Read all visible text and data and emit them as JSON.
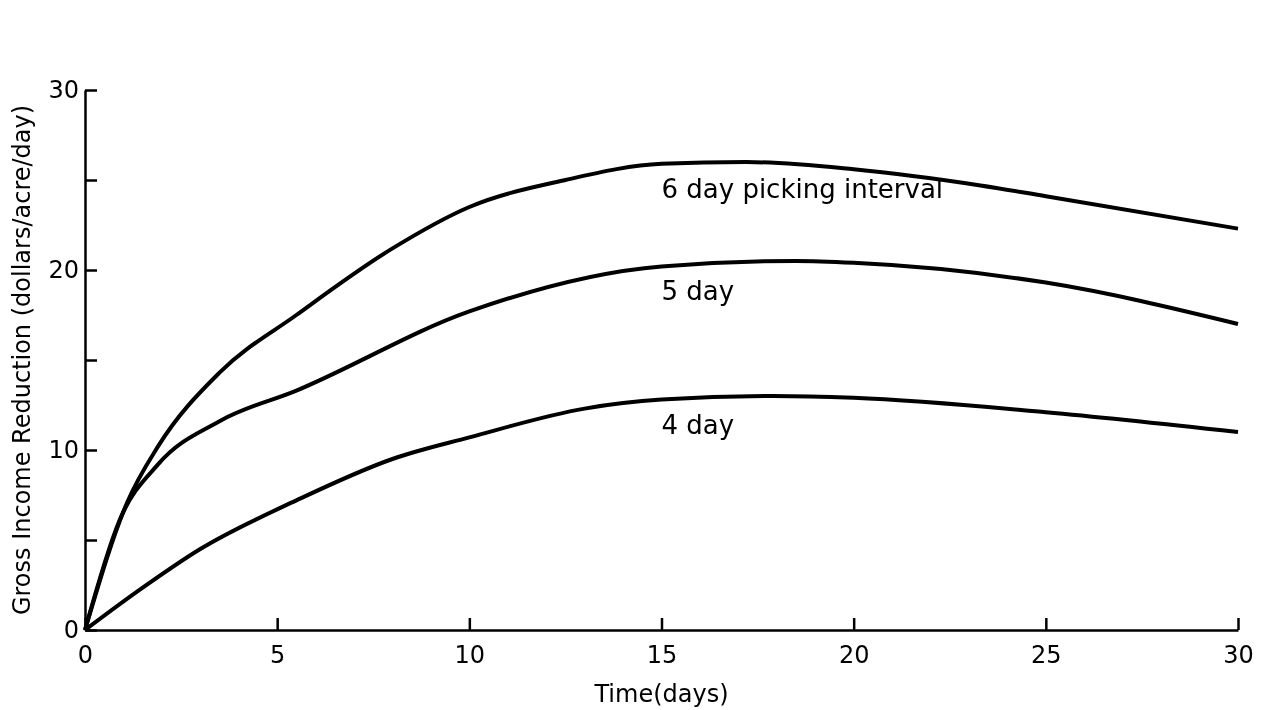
{
  "chart_data": {
    "type": "line",
    "xlabel": "Time(days)",
    "ylabel": "Gross Income Reduction (dollars/acre/day)",
    "xlim": [
      0,
      30
    ],
    "ylim": [
      0,
      30
    ],
    "xticks": [
      0,
      5,
      10,
      15,
      20,
      25,
      30
    ],
    "yticks": [
      0,
      {
        "value": 5,
        "label": null
      },
      10,
      {
        "value": 15,
        "label": null
      },
      20,
      {
        "value": 25,
        "label": null
      },
      30
    ],
    "grid": false,
    "legend": false,
    "marker": "none",
    "line_style": "solid",
    "series": [
      {
        "name": "6 day picking interval",
        "color": "#000000",
        "x": [
          0,
          1.1,
          1.9,
          3.5,
          5.5,
          8,
          10,
          12.5,
          15,
          17.2,
          20,
          23.3,
          25,
          30
        ],
        "values": [
          0,
          7.1,
          10.2,
          14.3,
          17.5,
          21.2,
          23.5,
          25,
          25.9,
          26,
          25.6,
          24.7,
          24.1,
          22.3
        ]
      },
      {
        "name": "5 day",
        "color": "#000000",
        "x": [
          0,
          0.9,
          1.9,
          3.5,
          5.5,
          10,
          15,
          18.5,
          20,
          25,
          30
        ],
        "values": [
          0,
          6.1,
          9.2,
          11.6,
          13.3,
          17.7,
          20.2,
          20.5,
          20.4,
          19.3,
          17
        ]
      },
      {
        "name": "4 day",
        "color": "#000000",
        "x": [
          0,
          1.4,
          3,
          5.5,
          8,
          10,
          13,
          15,
          17.9,
          20,
          25,
          30
        ],
        "values": [
          0,
          2.2,
          4.5,
          7.2,
          9.5,
          10.7,
          12.3,
          12.8,
          13,
          12.9,
          12.1,
          11
        ]
      }
    ]
  }
}
